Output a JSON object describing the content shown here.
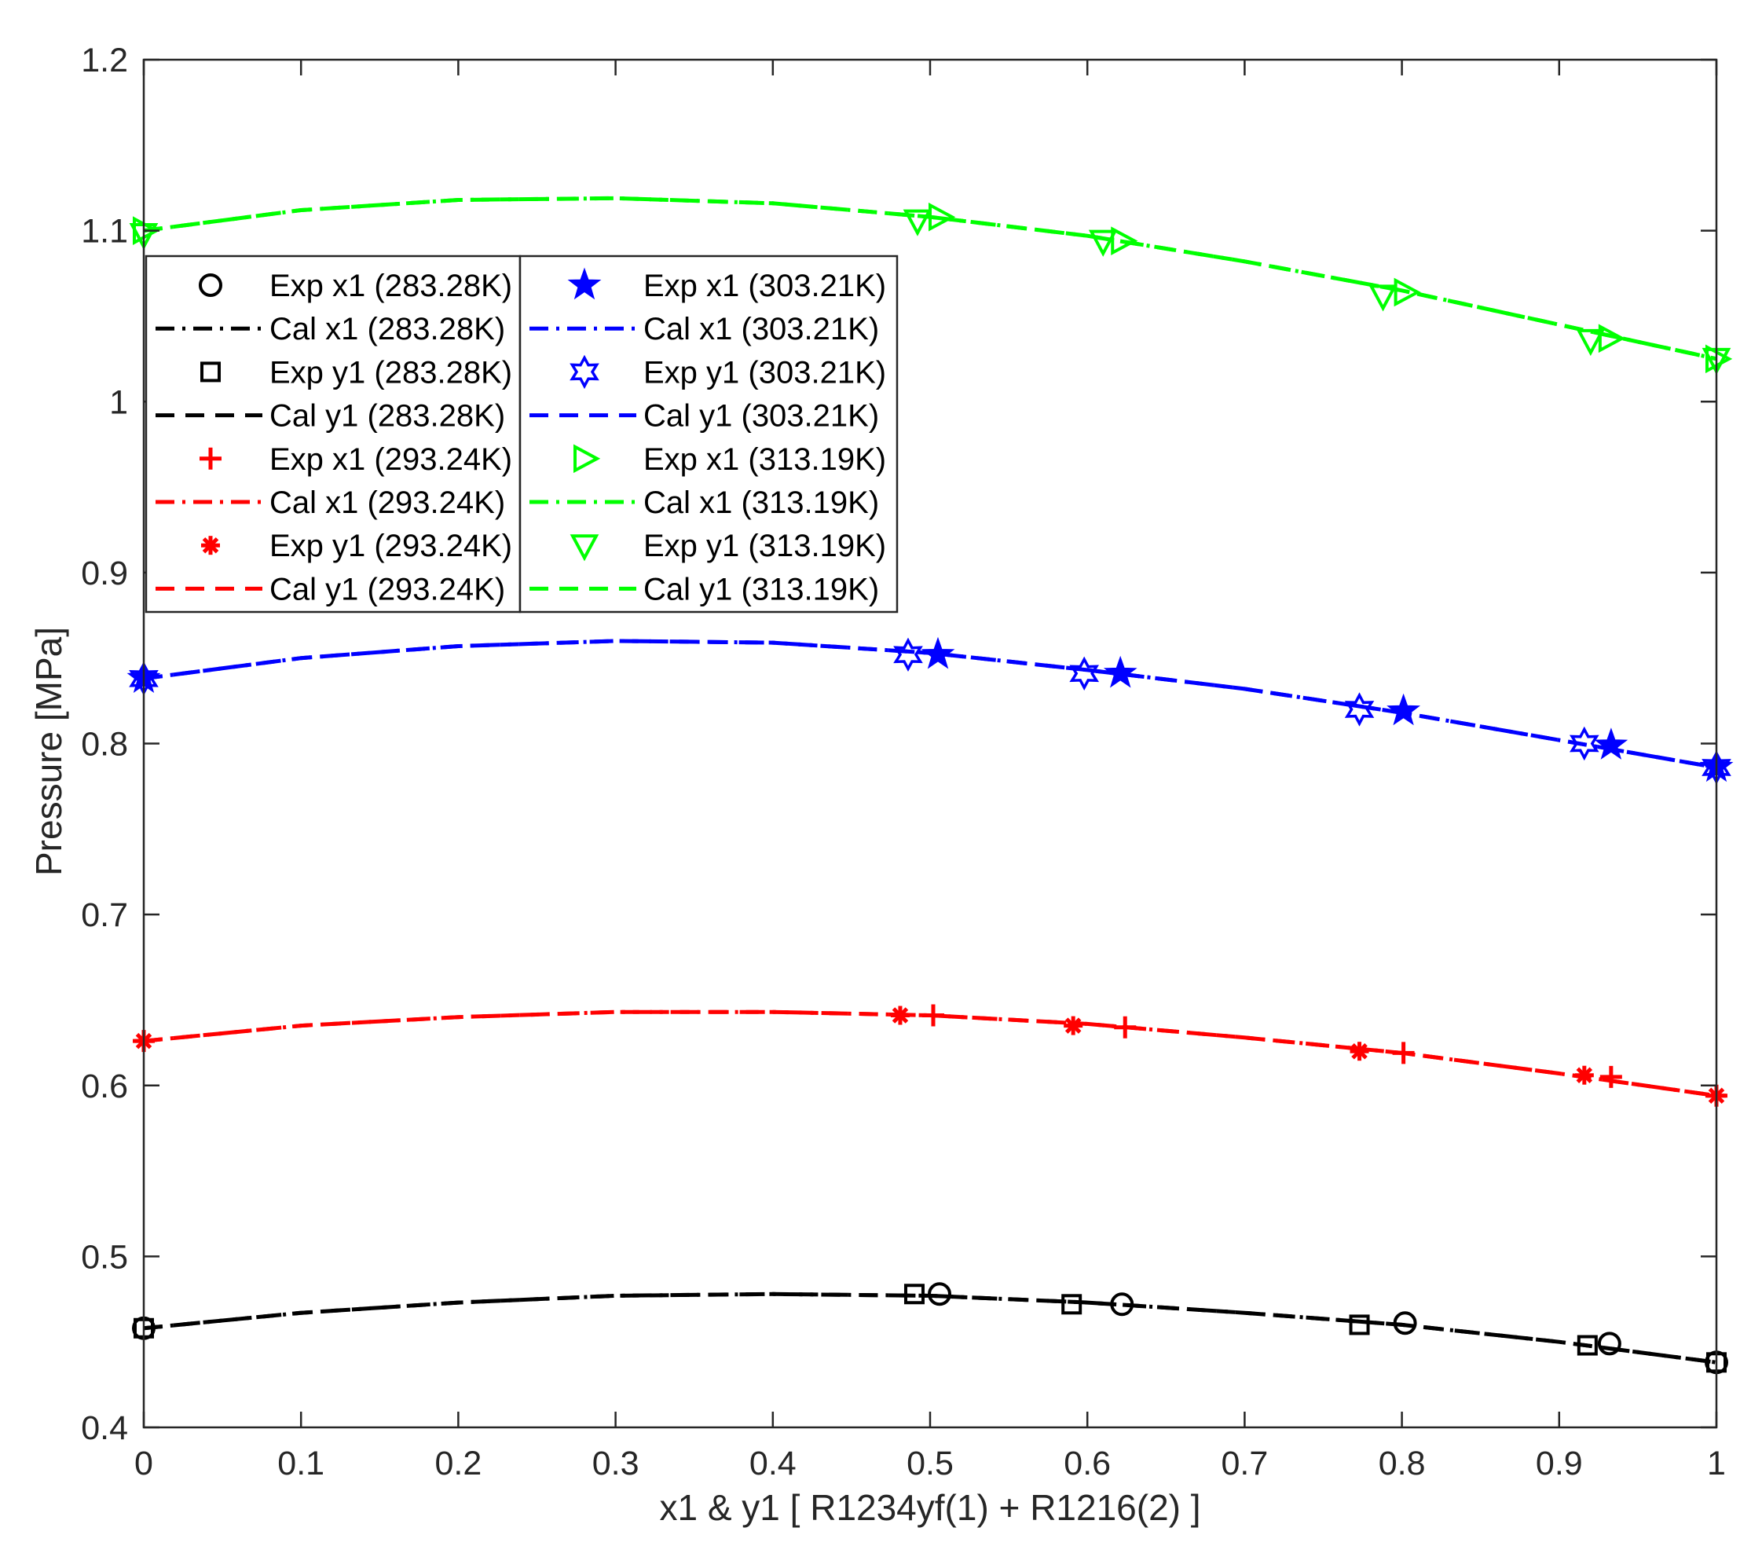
{
  "chart_data": {
    "type": "line",
    "xlabel": "x1 & y1 [ R1234yf(1) + R1216(2) ]",
    "ylabel": "Pressure [MPa]",
    "xlim": [
      0,
      1
    ],
    "ylim": [
      0.4,
      1.2
    ],
    "xticks": [
      "0",
      "0.1",
      "0.2",
      "0.3",
      "0.4",
      "0.5",
      "0.6",
      "0.7",
      "0.8",
      "0.9",
      "1"
    ],
    "yticks": [
      "0.4",
      "0.5",
      "0.6",
      "0.7",
      "0.8",
      "0.9",
      "1",
      "1.1",
      "1.2"
    ],
    "grid": false,
    "legend_position": "upper-left, two columns",
    "legend": {
      "col1": [
        "Exp x1 (283.28K)",
        "Cal x1 (283.28K)",
        "Exp y1 (283.28K)",
        "Cal y1 (283.28K)",
        "Exp x1 (293.24K)",
        "Cal x1 (293.24K)",
        "Exp y1 (293.24K)",
        "Cal y1 (293.24K)"
      ],
      "col2": [
        "Exp x1 (303.21K)",
        "Cal x1 (303.21K)",
        "Exp y1 (303.21K)",
        "Cal y1 (303.21K)",
        "Exp x1 (313.19K)",
        "Cal x1 (313.19K)",
        "Exp y1 (313.19K)",
        "Cal y1 (313.19K)"
      ]
    },
    "series": [
      {
        "name": "Exp x1 (283.28K)",
        "kind": "marker",
        "marker": "circle",
        "color": "#000000",
        "points": [
          [
            0,
            0.458
          ],
          [
            0.506,
            0.478
          ],
          [
            0.622,
            0.472
          ],
          [
            0.802,
            0.461
          ],
          [
            0.932,
            0.449
          ],
          [
            1.0,
            0.438
          ]
        ]
      },
      {
        "name": "Exp y1 (283.28K)",
        "kind": "marker",
        "marker": "square",
        "color": "#000000",
        "points": [
          [
            0,
            0.458
          ],
          [
            0.49,
            0.478
          ],
          [
            0.59,
            0.472
          ],
          [
            0.773,
            0.46
          ],
          [
            0.918,
            0.448
          ],
          [
            1.0,
            0.438
          ]
        ]
      },
      {
        "name": "Cal x1 (283.28K)",
        "kind": "line",
        "dash": "dashdot",
        "color": "#000000",
        "points": [
          [
            0,
            0.458
          ],
          [
            0.1,
            0.467
          ],
          [
            0.2,
            0.473
          ],
          [
            0.3,
            0.477
          ],
          [
            0.4,
            0.478
          ],
          [
            0.5,
            0.477
          ],
          [
            0.6,
            0.473
          ],
          [
            0.7,
            0.467
          ],
          [
            0.8,
            0.46
          ],
          [
            0.9,
            0.45
          ],
          [
            1.0,
            0.438
          ]
        ]
      },
      {
        "name": "Cal y1 (283.28K)",
        "kind": "line",
        "dash": "dash",
        "color": "#000000",
        "points": [
          [
            0,
            0.458
          ],
          [
            0.1,
            0.467
          ],
          [
            0.2,
            0.473
          ],
          [
            0.3,
            0.477
          ],
          [
            0.4,
            0.478
          ],
          [
            0.5,
            0.477
          ],
          [
            0.6,
            0.473
          ],
          [
            0.7,
            0.467
          ],
          [
            0.8,
            0.46
          ],
          [
            0.9,
            0.45
          ],
          [
            1.0,
            0.438
          ]
        ]
      },
      {
        "name": "Exp x1 (293.24K)",
        "kind": "marker",
        "marker": "plus",
        "color": "#ff0000",
        "points": [
          [
            0,
            0.626
          ],
          [
            0.502,
            0.641
          ],
          [
            0.624,
            0.634
          ],
          [
            0.801,
            0.619
          ],
          [
            0.933,
            0.605
          ],
          [
            1.0,
            0.594
          ]
        ]
      },
      {
        "name": "Exp y1 (293.24K)",
        "kind": "marker",
        "marker": "asterisk",
        "color": "#ff0000",
        "points": [
          [
            0,
            0.626
          ],
          [
            0.481,
            0.641
          ],
          [
            0.591,
            0.635
          ],
          [
            0.773,
            0.62
          ],
          [
            0.916,
            0.606
          ],
          [
            1.0,
            0.594
          ]
        ]
      },
      {
        "name": "Cal x1 (293.24K)",
        "kind": "line",
        "dash": "dashdot",
        "color": "#ff0000",
        "points": [
          [
            0,
            0.626
          ],
          [
            0.1,
            0.635
          ],
          [
            0.2,
            0.64
          ],
          [
            0.3,
            0.643
          ],
          [
            0.4,
            0.643
          ],
          [
            0.5,
            0.641
          ],
          [
            0.6,
            0.636
          ],
          [
            0.7,
            0.628
          ],
          [
            0.8,
            0.619
          ],
          [
            0.9,
            0.607
          ],
          [
            1.0,
            0.594
          ]
        ]
      },
      {
        "name": "Cal y1 (293.24K)",
        "kind": "line",
        "dash": "dash",
        "color": "#ff0000",
        "points": [
          [
            0,
            0.626
          ],
          [
            0.1,
            0.635
          ],
          [
            0.2,
            0.64
          ],
          [
            0.3,
            0.643
          ],
          [
            0.4,
            0.643
          ],
          [
            0.5,
            0.641
          ],
          [
            0.6,
            0.636
          ],
          [
            0.7,
            0.628
          ],
          [
            0.8,
            0.619
          ],
          [
            0.9,
            0.607
          ],
          [
            1.0,
            0.594
          ]
        ]
      },
      {
        "name": "Exp x1 (303.21K)",
        "kind": "marker",
        "marker": "star",
        "color": "#0000ff",
        "points": [
          [
            0,
            0.838
          ],
          [
            0.505,
            0.852
          ],
          [
            0.621,
            0.841
          ],
          [
            0.801,
            0.819
          ],
          [
            0.933,
            0.799
          ],
          [
            1.0,
            0.786
          ]
        ]
      },
      {
        "name": "Exp y1 (303.21K)",
        "kind": "marker",
        "marker": "hexagram",
        "color": "#0000ff",
        "points": [
          [
            0,
            0.838
          ],
          [
            0.486,
            0.852
          ],
          [
            0.598,
            0.841
          ],
          [
            0.773,
            0.82
          ],
          [
            0.916,
            0.8
          ],
          [
            1.0,
            0.786
          ]
        ]
      },
      {
        "name": "Cal x1 (303.21K)",
        "kind": "line",
        "dash": "dashdot",
        "color": "#0000ff",
        "points": [
          [
            0,
            0.838
          ],
          [
            0.1,
            0.85
          ],
          [
            0.2,
            0.857
          ],
          [
            0.3,
            0.86
          ],
          [
            0.4,
            0.859
          ],
          [
            0.5,
            0.853
          ],
          [
            0.6,
            0.843
          ],
          [
            0.7,
            0.832
          ],
          [
            0.8,
            0.818
          ],
          [
            0.9,
            0.802
          ],
          [
            1.0,
            0.786
          ]
        ]
      },
      {
        "name": "Cal y1 (303.21K)",
        "kind": "line",
        "dash": "dash",
        "color": "#0000ff",
        "points": [
          [
            0,
            0.838
          ],
          [
            0.1,
            0.85
          ],
          [
            0.2,
            0.857
          ],
          [
            0.3,
            0.86
          ],
          [
            0.4,
            0.859
          ],
          [
            0.5,
            0.853
          ],
          [
            0.6,
            0.843
          ],
          [
            0.7,
            0.832
          ],
          [
            0.8,
            0.818
          ],
          [
            0.9,
            0.802
          ],
          [
            1.0,
            0.786
          ]
        ]
      },
      {
        "name": "Exp x1 (313.19K)",
        "kind": "marker",
        "marker": "triangle-right",
        "color": "#00ff00",
        "points": [
          [
            0,
            1.1
          ],
          [
            0.506,
            1.108
          ],
          [
            0.622,
            1.094
          ],
          [
            0.802,
            1.064
          ],
          [
            0.932,
            1.037
          ],
          [
            1.0,
            1.025
          ]
        ]
      },
      {
        "name": "Exp y1 (313.19K)",
        "kind": "marker",
        "marker": "triangle-down",
        "color": "#00ff00",
        "points": [
          [
            0,
            1.098
          ],
          [
            0.492,
            1.106
          ],
          [
            0.61,
            1.094
          ],
          [
            0.788,
            1.062
          ],
          [
            0.92,
            1.036
          ],
          [
            1.0,
            1.025
          ]
        ]
      },
      {
        "name": "Cal x1 (313.19K)",
        "kind": "line",
        "dash": "dashdot",
        "color": "#00ff00",
        "points": [
          [
            0,
            1.1
          ],
          [
            0.1,
            1.112
          ],
          [
            0.2,
            1.118
          ],
          [
            0.3,
            1.119
          ],
          [
            0.4,
            1.116
          ],
          [
            0.5,
            1.108
          ],
          [
            0.6,
            1.097
          ],
          [
            0.7,
            1.082
          ],
          [
            0.8,
            1.065
          ],
          [
            0.9,
            1.045
          ],
          [
            1.0,
            1.025
          ]
        ]
      },
      {
        "name": "Cal y1 (313.19K)",
        "kind": "line",
        "dash": "dash",
        "color": "#00ff00",
        "points": [
          [
            0,
            1.1
          ],
          [
            0.1,
            1.112
          ],
          [
            0.2,
            1.118
          ],
          [
            0.3,
            1.119
          ],
          [
            0.4,
            1.116
          ],
          [
            0.5,
            1.108
          ],
          [
            0.6,
            1.097
          ],
          [
            0.7,
            1.082
          ],
          [
            0.8,
            1.065
          ],
          [
            0.9,
            1.045
          ],
          [
            1.0,
            1.025
          ]
        ]
      }
    ]
  }
}
